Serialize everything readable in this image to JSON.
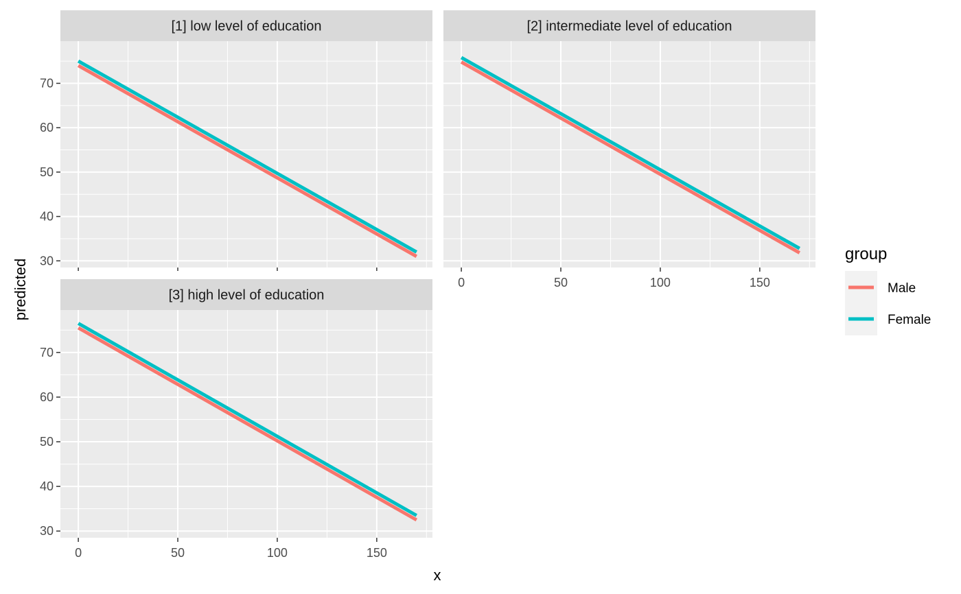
{
  "chart_data": {
    "type": "line",
    "xlabel": "x",
    "ylabel": "predicted",
    "xlim": [
      -9,
      178
    ],
    "ylim": [
      28.5,
      79.5
    ],
    "x_ticks": [
      0,
      50,
      100,
      150
    ],
    "x_tick_labels": [
      "0",
      "50",
      "100",
      "150"
    ],
    "y_ticks": [
      30,
      40,
      50,
      60,
      70
    ],
    "y_tick_labels": [
      "30",
      "40",
      "50",
      "60",
      "70"
    ],
    "grid": true,
    "legend": {
      "title": "group",
      "position": "right",
      "entries": [
        {
          "name": "Male",
          "color": "#F8766D"
        },
        {
          "name": "Female",
          "color": "#00BFC4"
        }
      ]
    },
    "panels": [
      {
        "title": "[1] low level of education",
        "series": [
          {
            "name": "Male",
            "color": "#F8766D",
            "x": [
              0,
              170
            ],
            "y": [
              74.0,
              31.0
            ]
          },
          {
            "name": "Female",
            "color": "#00BFC4",
            "x": [
              0,
              170
            ],
            "y": [
              75.0,
              32.0
            ]
          }
        ]
      },
      {
        "title": "[2] intermediate level of education",
        "series": [
          {
            "name": "Male",
            "color": "#F8766D",
            "x": [
              0,
              170
            ],
            "y": [
              74.8,
              31.8
            ]
          },
          {
            "name": "Female",
            "color": "#00BFC4",
            "x": [
              0,
              170
            ],
            "y": [
              75.8,
              32.8
            ]
          }
        ]
      },
      {
        "title": "[3] high level of education",
        "series": [
          {
            "name": "Male",
            "color": "#F8766D",
            "x": [
              0,
              170
            ],
            "y": [
              75.5,
              32.5
            ]
          },
          {
            "name": "Female",
            "color": "#00BFC4",
            "x": [
              0,
              170
            ],
            "y": [
              76.5,
              33.5
            ]
          }
        ]
      }
    ]
  }
}
